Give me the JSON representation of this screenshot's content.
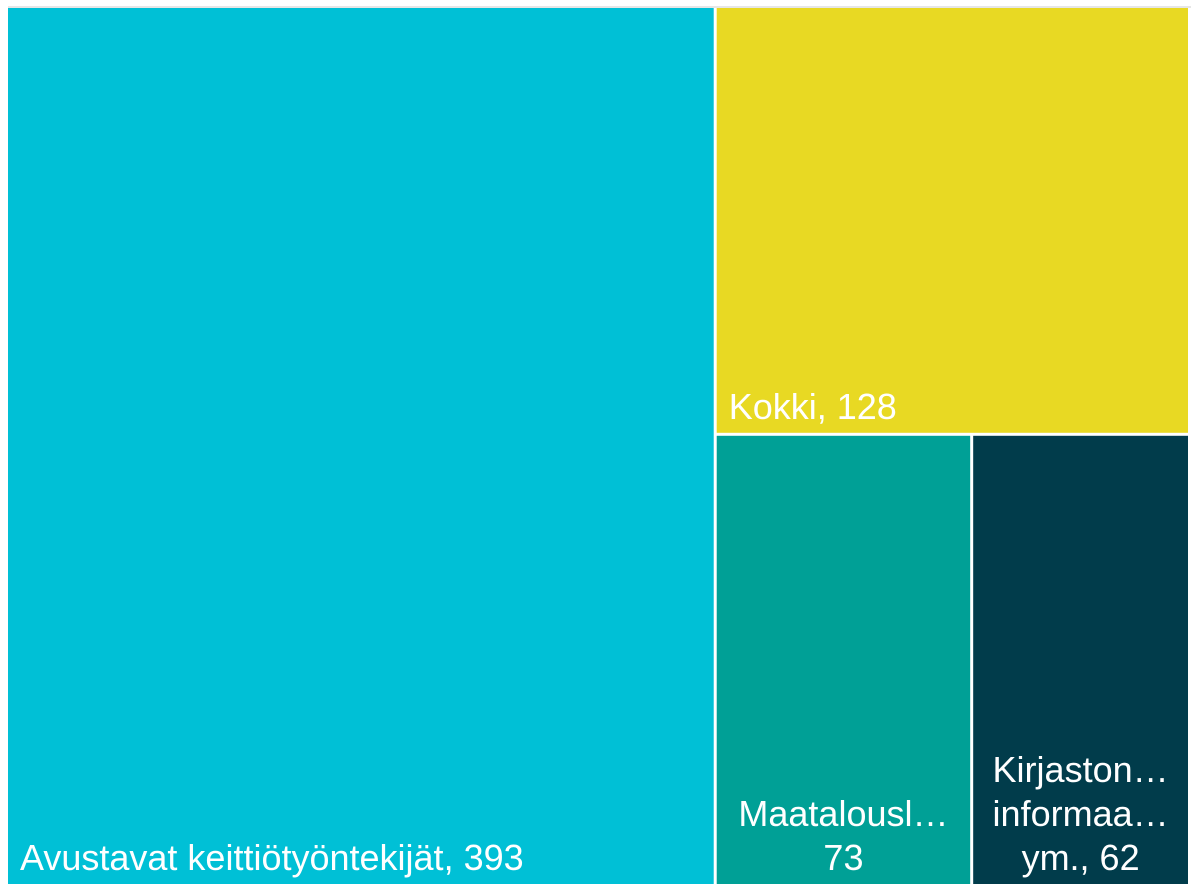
{
  "chart_data": {
    "type": "treemap",
    "values": [
      393,
      128,
      73,
      62
    ],
    "value_labels": [
      [
        "Avustavat keittiötyöntekijät, 393"
      ],
      [
        "Kokki, 128"
      ],
      [
        "Maatalousl…",
        "73"
      ],
      [
        "Kirjaston…",
        "informaa…",
        "ym., 62"
      ]
    ],
    "colors": [
      "#00c0d6",
      "#e8d923",
      "#00a096",
      "#013c4b"
    ]
  }
}
